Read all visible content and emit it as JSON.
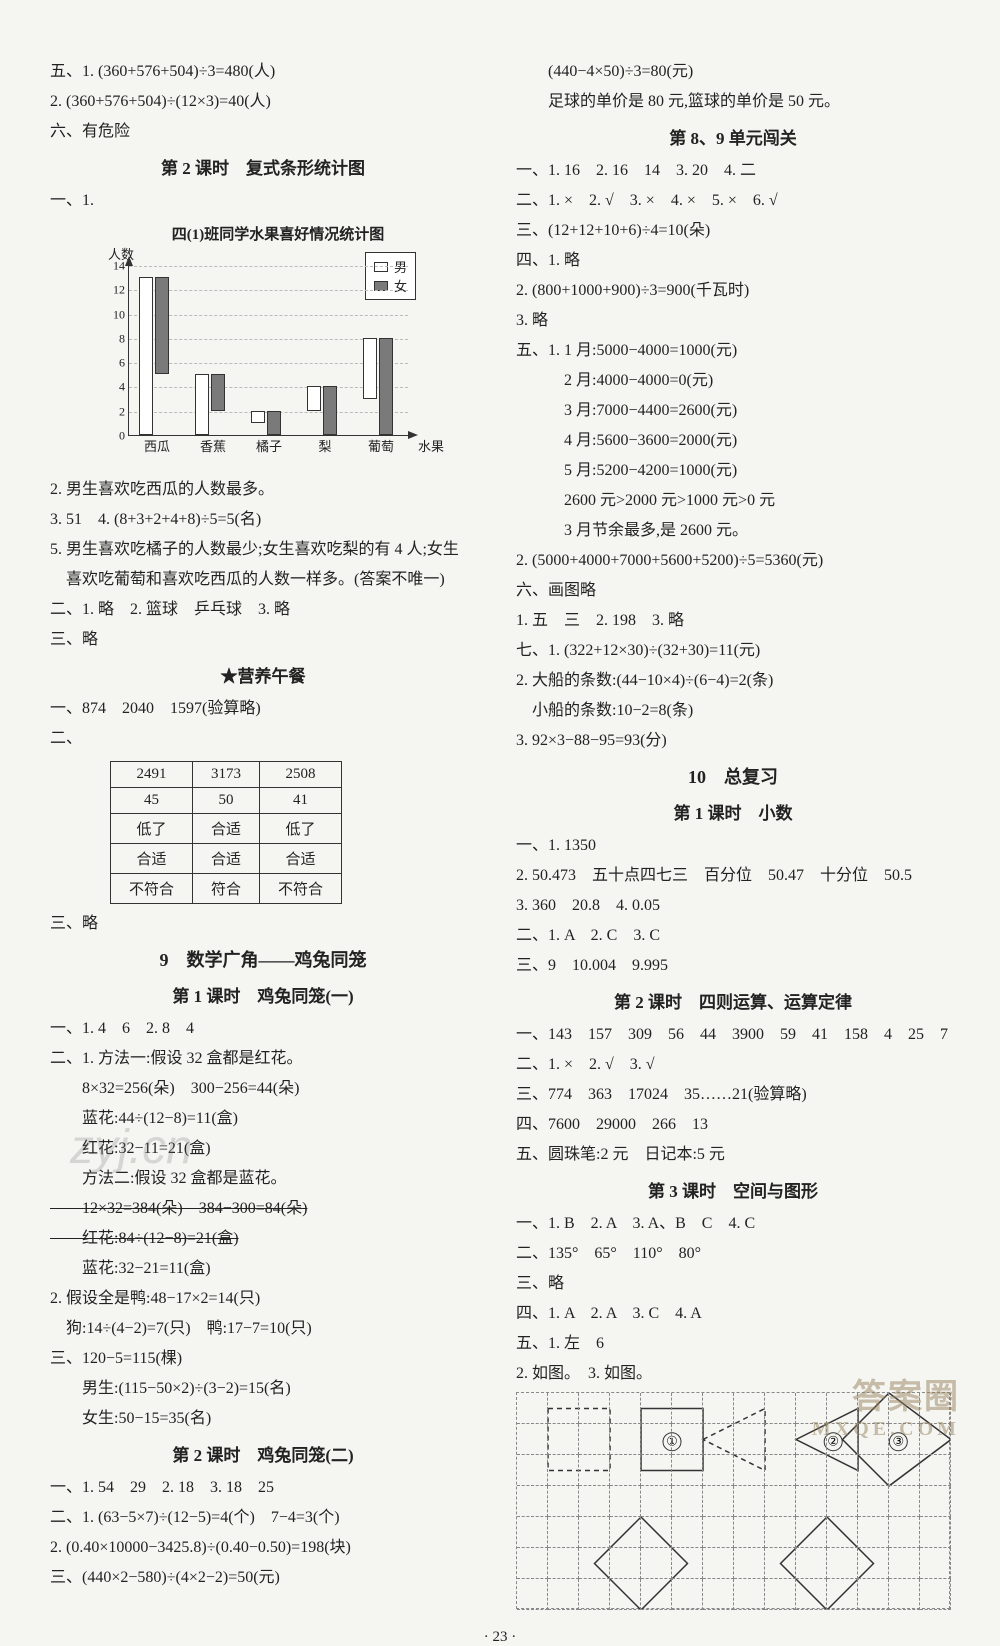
{
  "left": {
    "top_lines": [
      "五、1. (360+576+504)÷3=480(人)",
      "2. (360+576+504)÷(12×3)=40(人)",
      "六、有危险"
    ],
    "lesson2_title": "第 2 课时　复式条形统计图",
    "chart": {
      "title": "四(1)班同学水果喜好情况统计图",
      "y_label": "人数",
      "x_axis_label": "水果",
      "legend": {
        "male": "男",
        "female": "女"
      },
      "colors": {
        "male": "#ffffff",
        "female": "#7a7a7a",
        "border": "#333333",
        "grid": "#bbbbbb"
      },
      "y_max": 14,
      "y_step": 2,
      "y_ticks": [
        0,
        2,
        4,
        6,
        8,
        10,
        12,
        14
      ],
      "categories": [
        "西瓜",
        "香蕉",
        "橘子",
        "梨",
        "葡萄"
      ],
      "male_values": [
        13,
        5,
        1,
        2,
        5
      ],
      "female_values": [
        8,
        3,
        2,
        4,
        8
      ]
    },
    "after_chart": [
      "2. 男生喜欢吃西瓜的人数最多。",
      "3. 51　4. (8+3+2+4+8)÷5=5(名)",
      "5. 男生喜欢吃橘子的人数最少;女生喜欢吃梨的有 4 人;女生",
      "　喜欢吃葡萄和喜欢吃西瓜的人数一样多。(答案不唯一)",
      "二、1. 略　2. 篮球　乒乓球　3. 略",
      "三、略"
    ],
    "nutrition_title": "★营养午餐",
    "nutrition_lead": "一、874　2040　1597(验算略)",
    "nutrition_two": "二、",
    "nutrition_table": [
      [
        "2491",
        "3173",
        "2508"
      ],
      [
        "45",
        "50",
        "41"
      ],
      [
        "低了",
        "合适",
        "低了"
      ],
      [
        "合适",
        "合适",
        "合适"
      ],
      [
        "不符合",
        "符合",
        "不符合"
      ]
    ],
    "nutrition_after": "三、略",
    "sec9_title": "9　数学广角——鸡兔同笼",
    "sec9_l1_title": "第 1 课时　鸡兔同笼(一)",
    "sec9_l1_lines": [
      "一、1. 4　6　2. 8　4",
      "二、1. 方法一:假设 32 盒都是红花。",
      "　　8×32=256(朵)　300−256=44(朵)",
      "　　蓝花:44÷(12−8)=11(盒)",
      "　　红花:32−11=21(盒)",
      "　　方法二:假设 32 盒都是蓝花。"
    ],
    "sec9_l1_struck": [
      "　　12×32=384(朵)　384−300=84(朵)",
      "　　红花:84÷(12−8)=21(盒)"
    ],
    "sec9_l1_lines2": [
      "　　蓝花:32−21=11(盒)",
      "2. 假设全是鸭:48−17×2=14(只)",
      "　狗:14÷(4−2)=7(只)　鸭:17−7=10(只)",
      "三、120−5=115(棵)",
      "　　男生:(115−50×2)÷(3−2)=15(名)",
      "　　女生:50−15=35(名)"
    ],
    "sec9_l2_title": "第 2 课时　鸡兔同笼(二)",
    "sec9_l2_lines": [
      "一、1. 54　29　2. 18　3. 18　25",
      "二、1. (63−5×7)÷(12−5)=4(个)　7−4=3(个)",
      "2. (0.40×10000−3425.8)÷(0.40−0.50)=198(块)",
      "三、(440×2−580)÷(4×2−2)=50(元)"
    ]
  },
  "right": {
    "top_lines": [
      "　　(440−4×50)÷3=80(元)",
      "　　足球的单价是 80 元,篮球的单价是 50 元。"
    ],
    "unit89_title": "第 8、9 单元闯关",
    "unit89_lines": [
      "一、1. 16　2. 16　14　3. 20　4. 二",
      "二、1. ×　2. √　3. ×　4. ×　5. ×　6. √",
      "三、(12+12+10+6)÷4=10(朵)",
      "四、1. 略",
      "2. (800+1000+900)÷3=900(千瓦时)",
      "3. 略",
      "五、1. 1 月:5000−4000=1000(元)",
      "　　　2 月:4000−4000=0(元)",
      "　　　3 月:7000−4400=2600(元)",
      "　　　4 月:5600−3600=2000(元)",
      "　　　5 月:5200−4200=1000(元)",
      "　　　2600 元>2000 元>1000 元>0 元",
      "　　　3 月节余最多,是 2600 元。",
      "2. (5000+4000+7000+5600+5200)÷5=5360(元)",
      "六、画图略",
      "1. 五　三　2. 198　3. 略",
      "七、1. (322+12×30)÷(32+30)=11(元)",
      "2. 大船的条数:(44−10×4)÷(6−4)=2(条)",
      "　小船的条数:10−2=8(条)",
      "3. 92×3−88−95=93(分)"
    ],
    "sec10_title": "10　总复习",
    "sec10_l1_title": "第 1 课时　小数",
    "sec10_l1_lines": [
      "一、1. 1350",
      "2. 50.473　五十点四七三　百分位　50.47　十分位　50.5",
      "3. 360　20.8　4. 0.05",
      "二、1. A　2. C　3. C",
      "三、9　10.004　9.995"
    ],
    "sec10_l2_title": "第 2 课时　四则运算、运算定律",
    "sec10_l2_lines": [
      "一、143　157　309　56　44　3900　59　41　158　4　25　7",
      "二、1. ×　2. √　3. √",
      "三、774　363　17024　35……21(验算略)",
      "四、7600　29000　266　13",
      "五、圆珠笔:2 元　日记本:5 元"
    ],
    "sec10_l3_title": "第 3 课时　空间与图形",
    "sec10_l3_lines": [
      "一、1. B　2. A　3. A、B　C　4. C",
      "二、135°　65°　110°　80°",
      "三、略",
      "四、1. A　2. A　3. C　4. A",
      "五、1. 左　6",
      "2. 如图。　3. 如图。"
    ],
    "grid": {
      "cols": 14,
      "rows": 7,
      "cell": 31
    }
  },
  "page_num": "· 23 ·",
  "watermarks": {
    "tl": "zyj.cn",
    "br1": "答案圈",
    "br2": "MXQE.COM"
  }
}
